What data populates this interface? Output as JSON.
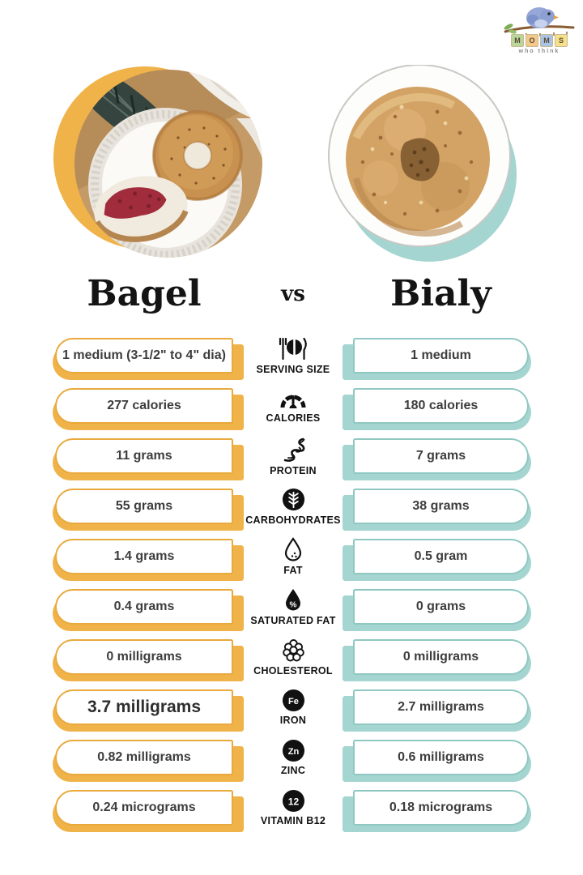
{
  "logo": {
    "tagline": "who think",
    "letters": [
      {
        "char": "M",
        "bg": "#b9d79a"
      },
      {
        "char": "O",
        "bg": "#f3c98b"
      },
      {
        "char": "M",
        "bg": "#aac4e8"
      },
      {
        "char": "S",
        "bg": "#f6e08a"
      }
    ]
  },
  "header": {
    "title_left": "Bagel",
    "title_vs": "vs",
    "title_right": "Bialy"
  },
  "colors": {
    "bagel_accent": "#F0B34A",
    "bialy_accent": "#A5D5D0"
  },
  "rows": [
    {
      "icon": "serving-size",
      "label": "SERVING SIZE",
      "bagel": "1 medium (3-1/2\" to 4\" dia)",
      "bialy": "1 medium"
    },
    {
      "icon": "calories",
      "label": "CALORIES",
      "bagel": "277 calories",
      "bialy": "180 calories"
    },
    {
      "icon": "protein",
      "label": "PROTEIN",
      "bagel": "11 grams",
      "bialy": "7 grams"
    },
    {
      "icon": "carbohydrates",
      "label": "CARBOHYDRATES",
      "bagel": "55 grams",
      "bialy": "38 grams"
    },
    {
      "icon": "fat",
      "label": "FAT",
      "bagel": "1.4 grams",
      "bialy": "0.5 gram"
    },
    {
      "icon": "saturated-fat",
      "label": "SATURATED FAT",
      "bagel": "0.4 grams",
      "bialy": "0 grams"
    },
    {
      "icon": "cholesterol",
      "label": "CHOLESTEROL",
      "bagel": "0 milligrams",
      "bialy": "0 milligrams"
    },
    {
      "icon": "iron",
      "label": "IRON",
      "bagel": "3.7 milligrams",
      "bialy": "2.7 milligrams",
      "emphasis": true
    },
    {
      "icon": "zinc",
      "label": "ZINC",
      "bagel": "0.82 milligrams",
      "bialy": "0.6 milligrams"
    },
    {
      "icon": "vitamin-b12",
      "label": "VITAMIN B12",
      "bagel": "0.24 micrograms",
      "bialy": "0.18 micrograms"
    }
  ]
}
